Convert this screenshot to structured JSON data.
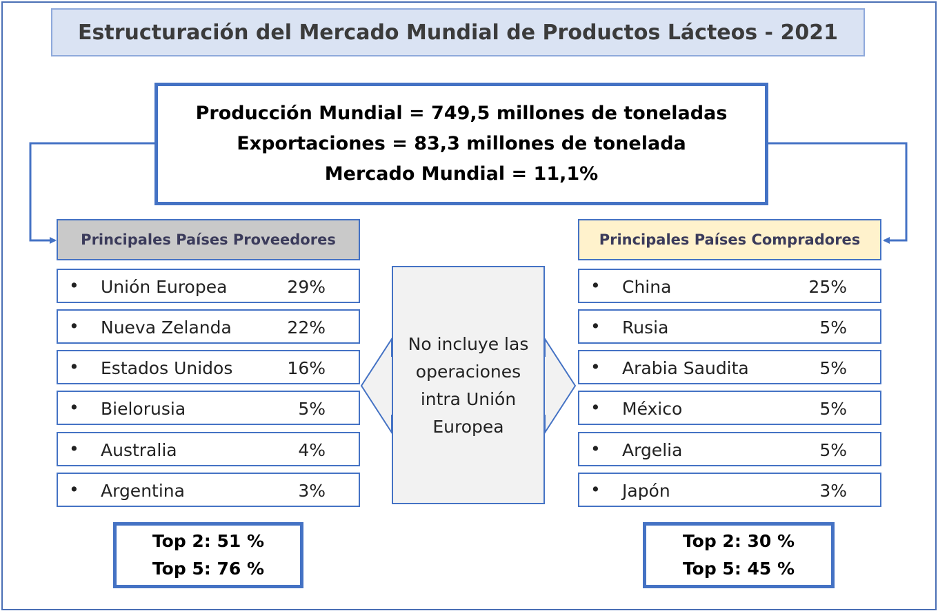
{
  "title": "Estructuración del Mercado Mundial de Productos Lácteos - 2021",
  "summary": {
    "line1": "Producción Mundial = 749,5 millones de toneladas",
    "line2": "Exportaciones = 83,3 millones de tonelada",
    "line3": "Mercado Mundial = 11,1%"
  },
  "suppliers": {
    "header": "Principales Países Proveedores",
    "items": [
      {
        "name": "Unión Europea",
        "pct": "29%"
      },
      {
        "name": "Nueva Zelanda",
        "pct": "22%"
      },
      {
        "name": "Estados Unidos",
        "pct": "16%"
      },
      {
        "name": "Bielorusia",
        "pct": "5%"
      },
      {
        "name": "Australia",
        "pct": "4%"
      },
      {
        "name": "Argentina",
        "pct": "3%"
      }
    ],
    "top2": "Top 2: 51 %",
    "top5": "Top 5: 76 %"
  },
  "buyers": {
    "header": "Principales Países Compradores",
    "items": [
      {
        "name": "China",
        "pct": "25%"
      },
      {
        "name": "Rusia",
        "pct": "5%"
      },
      {
        "name": "Arabia Saudita",
        "pct": "5%"
      },
      {
        "name": "México",
        "pct": "5%"
      },
      {
        "name": "Argelia",
        "pct": "5%"
      },
      {
        "name": "Japón",
        "pct": "3%"
      }
    ],
    "top2": "Top 2: 30 %",
    "top5": "Top 5: 45 %"
  },
  "center_note": {
    "line1": "No incluye las",
    "line2": "operaciones",
    "line3": "intra Unión",
    "line4": "Europea"
  },
  "colors": {
    "border": "#4472c4",
    "title_bg": "#dae3f3",
    "supplier_header_bg": "#c9c9c9",
    "buyer_header_bg": "#fff2cc",
    "note_bg": "#f2f2f2"
  }
}
